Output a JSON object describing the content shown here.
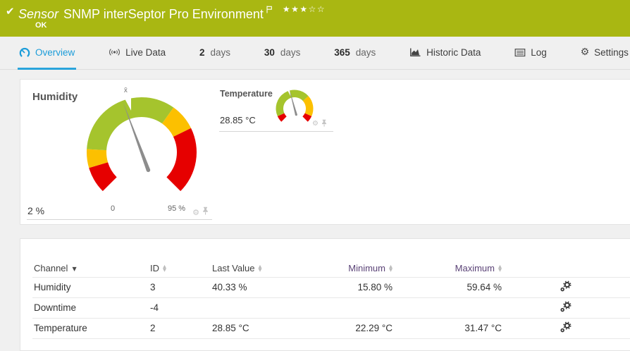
{
  "colors": {
    "status_ok_bar": "#a9b712",
    "accent_blue": "#1b9cd9",
    "gauge_green": "#a5c42d",
    "gauge_yellow": "#fcc000",
    "gauge_red": "#e60000",
    "needle_gray": "#8d8d8d",
    "header_link": "#414141",
    "header_link_visited": "#5b4377"
  },
  "header": {
    "type_label": "Sensor",
    "title": "SNMP interSeptor Pro Environment",
    "status": "OK",
    "stars_filled": 3,
    "stars_total": 5
  },
  "tabs": [
    {
      "label": "Overview",
      "icon": "gauge-icon",
      "active": true
    },
    {
      "label": "Live Data",
      "icon": "broadcast-icon",
      "active": false
    },
    {
      "num": "2",
      "label": "days",
      "active": false
    },
    {
      "num": "30",
      "label": "days",
      "active": false
    },
    {
      "num": "365",
      "label": "days",
      "active": false
    },
    {
      "label": "Historic Data",
      "icon": "area-chart-icon",
      "active": false
    },
    {
      "label": "Log",
      "icon": "log-icon",
      "active": false
    },
    {
      "label": "Settings",
      "icon": "gear-icon",
      "active": false
    }
  ],
  "chart_data": [
    {
      "type": "gauge",
      "title": "Humidity",
      "unit": "%",
      "scale_min": 0,
      "scale_max": 95,
      "start_angle": -135,
      "end_angle": 135,
      "segments": [
        {
          "from": 0,
          "to": 10,
          "color": "#e60000"
        },
        {
          "from": 10,
          "to": 17,
          "color": "#fcc000"
        },
        {
          "from": 17,
          "to": 60,
          "color": "#a5c42d"
        },
        {
          "from": 60,
          "to": 70,
          "color": "#fcc000"
        },
        {
          "from": 70,
          "to": 95,
          "color": "#e60000"
        }
      ],
      "needle_value": 40.33,
      "mean_value": 42.5,
      "mean_marker_label": "x̄",
      "labels": {
        "bottom_left": "2 %",
        "scale_start": "0",
        "scale_end": "95 %"
      }
    },
    {
      "type": "gauge",
      "title": "Temperature",
      "unit": "°C",
      "value_label": "28.85 °C",
      "scale_min": 0,
      "scale_max": 65,
      "start_angle": -135,
      "end_angle": 135,
      "segments": [
        {
          "from": 0,
          "to": 5,
          "color": "#e60000"
        },
        {
          "from": 5,
          "to": 44,
          "color": "#a5c42d"
        },
        {
          "from": 44,
          "to": 60,
          "color": "#fcc000"
        },
        {
          "from": 60,
          "to": 65,
          "color": "#e60000"
        }
      ],
      "needle_value": 28.85,
      "mean_value": 28.2
    }
  ],
  "table": {
    "columns": [
      {
        "label": "Channel",
        "sort": "active",
        "align": "left",
        "color": "#414141"
      },
      {
        "label": "ID",
        "sort": "both",
        "align": "left",
        "color": "#414141"
      },
      {
        "label": "Last Value",
        "sort": "both",
        "align": "left",
        "color": "#414141"
      },
      {
        "label": "Minimum",
        "sort": "both",
        "align": "right",
        "color": "#5b4377"
      },
      {
        "label": "Maximum",
        "sort": "both",
        "align": "right",
        "color": "#5b4377"
      },
      {
        "label": "",
        "sort": null,
        "align": "left",
        "color": "#414141"
      }
    ],
    "rows": [
      {
        "channel": "Humidity",
        "id": "3",
        "last": "40.33 %",
        "min": "15.80 %",
        "max": "59.64 %"
      },
      {
        "channel": "Downtime",
        "id": "-4",
        "last": "",
        "min": "",
        "max": ""
      },
      {
        "channel": "Temperature",
        "id": "2",
        "last": "28.85 °C",
        "min": "22.29 °C",
        "max": "31.47 °C"
      }
    ]
  }
}
